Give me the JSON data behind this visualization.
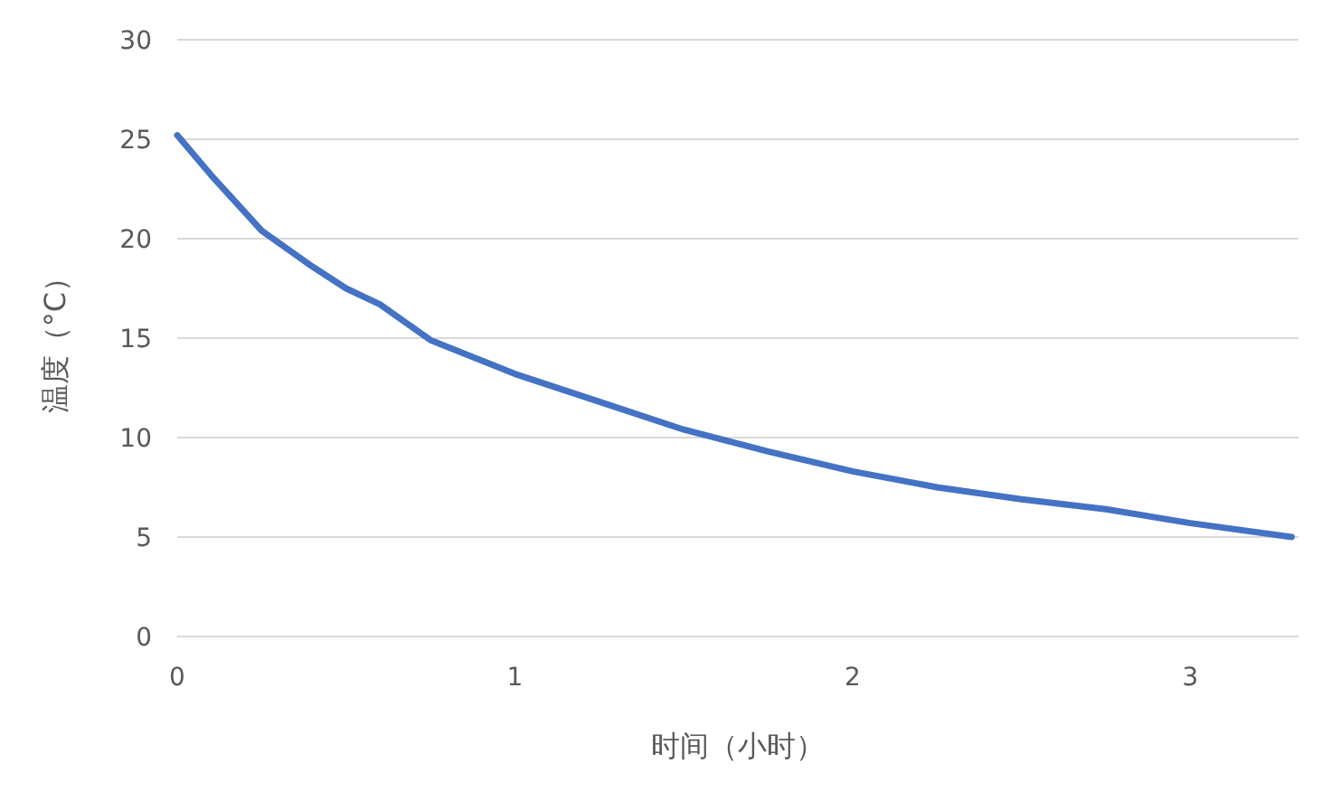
{
  "chart_data": {
    "type": "line",
    "xlabel": "时间（小时）",
    "ylabel": "温度（°C）",
    "x": [
      0,
      0.1,
      0.25,
      0.4,
      0.5,
      0.6,
      0.75,
      1,
      1.25,
      1.5,
      1.75,
      2,
      2.25,
      2.5,
      2.75,
      3,
      3.3
    ],
    "series": [
      {
        "color": "#4472c4",
        "values": [
          25.2,
          23.2,
          20.4,
          18.6,
          17.5,
          16.7,
          14.9,
          13.2,
          11.8,
          10.4,
          9.3,
          8.3,
          7.5,
          6.9,
          6.4,
          5.7,
          5.0
        ]
      }
    ],
    "xlim": [
      0,
      3.32
    ],
    "xticks": [
      0,
      1,
      2,
      3
    ],
    "ylim": [
      0,
      30
    ],
    "yticks": [
      0,
      5,
      10,
      15,
      20,
      25,
      30
    ],
    "grid": "y"
  }
}
